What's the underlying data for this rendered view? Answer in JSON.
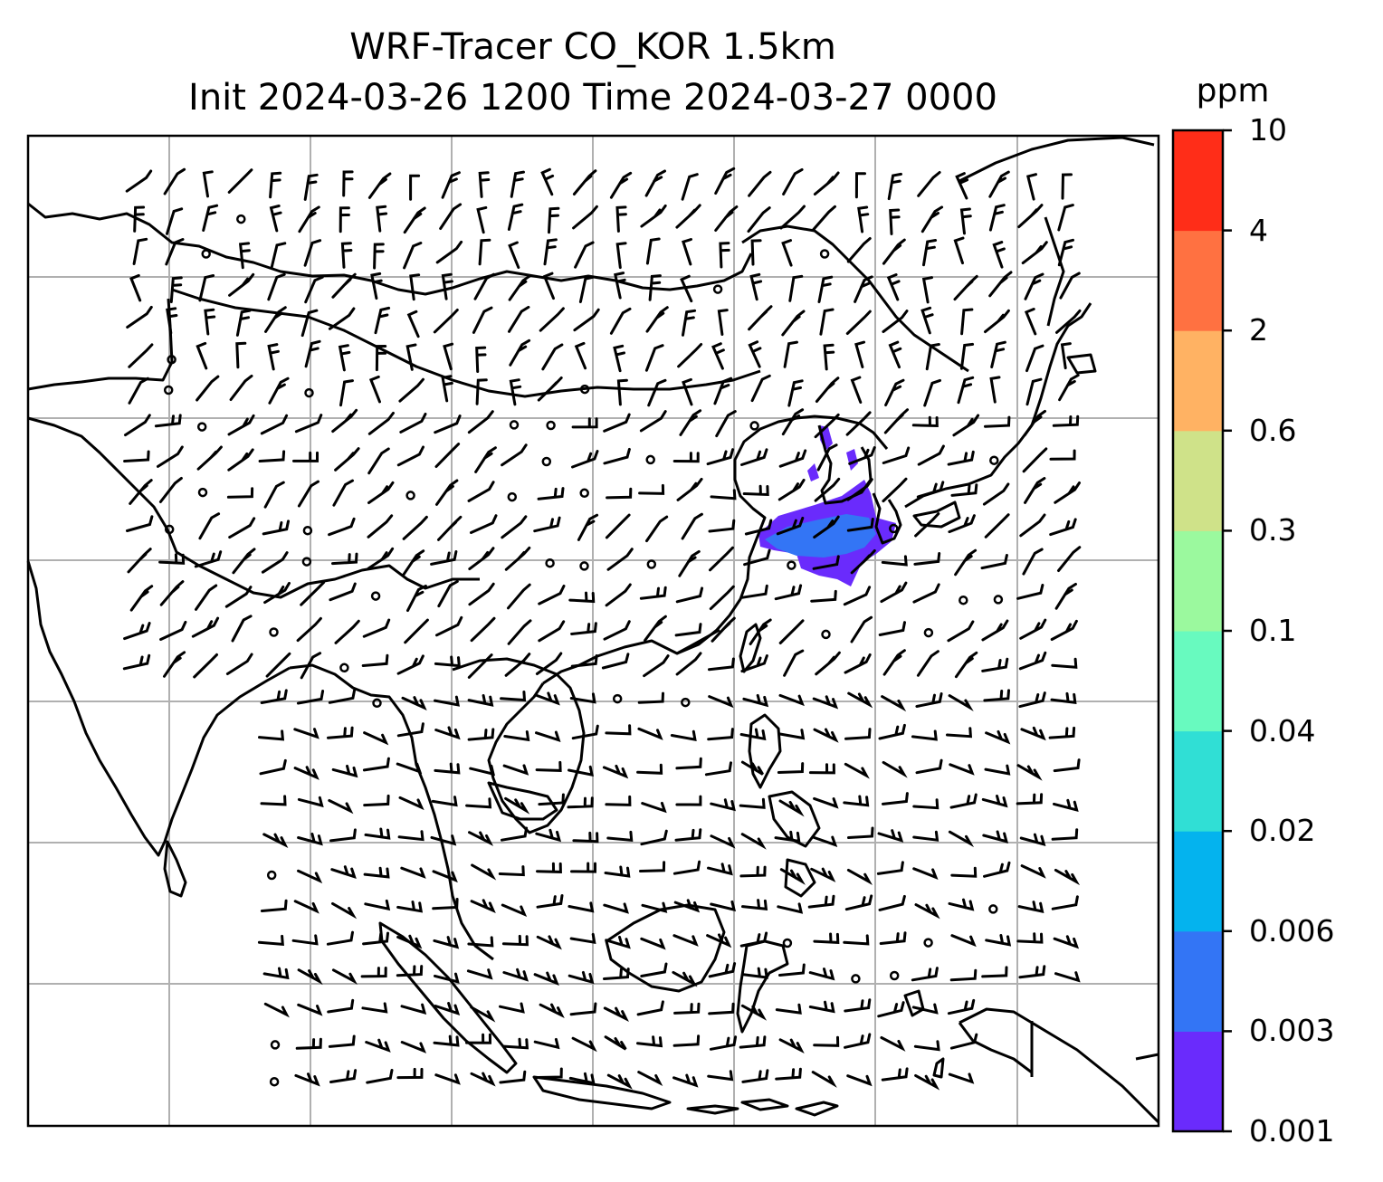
{
  "title": {
    "line1": "WRF-Tracer CO_KOR 1.5km",
    "line2": "Init 2024-03-26 1200 Time 2024-03-27 0000"
  },
  "colorbar": {
    "unit": "ppm",
    "levels": [
      "0.001",
      "0.003",
      "0.006",
      "0.02",
      "0.04",
      "0.1",
      "0.3",
      "0.6",
      "2",
      "4",
      "10"
    ],
    "colors": [
      "#6a2bfc",
      "#3375f5",
      "#04b3ee",
      "#30dfd5",
      "#68fabf",
      "#9bf99e",
      "#cfe289",
      "#ffb263",
      "#ff7141",
      "#ff2d18"
    ]
  },
  "map": {
    "tracer_color": "#6a2bfc",
    "tracer_core_color": "#3375f5",
    "coastline_color": "#000000",
    "grid_color": "#b0b0b0"
  }
}
